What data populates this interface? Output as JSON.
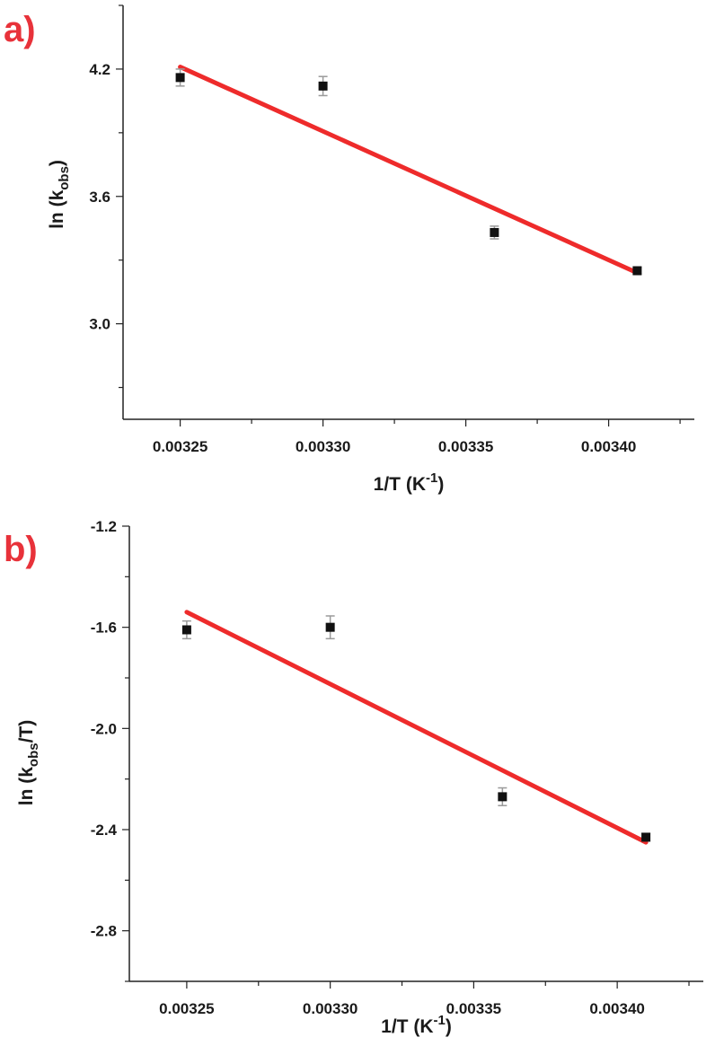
{
  "colors": {
    "panel_label": "#e8323a",
    "fit_line": "#ee2b2b",
    "marker": "#111111",
    "errorbar": "#9a9a9a",
    "axis": "#222222"
  },
  "chart_data": [
    {
      "type": "scatter",
      "panel_label": "a)",
      "xlabel": {
        "main": "1/T (K",
        "sup": "-1",
        "end": ")"
      },
      "ylabel": {
        "main": "ln (k",
        "sub": "obs",
        "end": ")"
      },
      "xlim": [
        0.00323,
        0.00343
      ],
      "ylim": [
        2.55,
        4.5
      ],
      "xticks": [
        {
          "value": 0.00325,
          "label": "0.00325"
        },
        {
          "value": 0.0033,
          "label": "0.00330"
        },
        {
          "value": 0.00335,
          "label": "0.00335"
        },
        {
          "value": 0.0034,
          "label": "0.00340"
        }
      ],
      "yticks": [
        {
          "value": 3.0,
          "label": "3.0"
        },
        {
          "value": 3.6,
          "label": "3.6"
        },
        {
          "value": 4.2,
          "label": "4.2"
        }
      ],
      "points": [
        {
          "x": 0.00325,
          "y": 4.16,
          "err": 0.04
        },
        {
          "x": 0.0033,
          "y": 4.12,
          "err": 0.045
        },
        {
          "x": 0.00336,
          "y": 3.43,
          "err": 0.03
        },
        {
          "x": 0.00341,
          "y": 3.25,
          "err": 0.015
        }
      ],
      "fit": {
        "x": [
          0.00325,
          0.00341
        ],
        "y": [
          4.21,
          3.24
        ]
      },
      "grid": false
    },
    {
      "type": "scatter",
      "panel_label": "b)",
      "xlabel": {
        "main": "1/T (K",
        "sup": "-1",
        "end": ")"
      },
      "ylabel": {
        "main": "ln (k",
        "sub": "obs",
        "end": "/T)"
      },
      "xlim": [
        0.00323,
        0.00343
      ],
      "ylim": [
        -3.0,
        -1.2
      ],
      "xticks": [
        {
          "value": 0.00325,
          "label": "0.00325"
        },
        {
          "value": 0.0033,
          "label": "0.00330"
        },
        {
          "value": 0.00335,
          "label": "0.00335"
        },
        {
          "value": 0.0034,
          "label": "0.00340"
        }
      ],
      "yticks": [
        {
          "value": -1.2,
          "label": "-1.2"
        },
        {
          "value": -1.6,
          "label": "-1.6"
        },
        {
          "value": -2.0,
          "label": "-2.0"
        },
        {
          "value": -2.4,
          "label": "-2.4"
        },
        {
          "value": -2.8,
          "label": "-2.8"
        }
      ],
      "points": [
        {
          "x": 0.00325,
          "y": -1.61,
          "err": 0.035
        },
        {
          "x": 0.0033,
          "y": -1.6,
          "err": 0.045
        },
        {
          "x": 0.00336,
          "y": -2.27,
          "err": 0.035
        },
        {
          "x": 0.00341,
          "y": -2.43,
          "err": 0.015
        }
      ],
      "fit": {
        "x": [
          0.00325,
          0.00341
        ],
        "y": [
          -1.54,
          -2.45
        ]
      },
      "grid": false
    }
  ]
}
